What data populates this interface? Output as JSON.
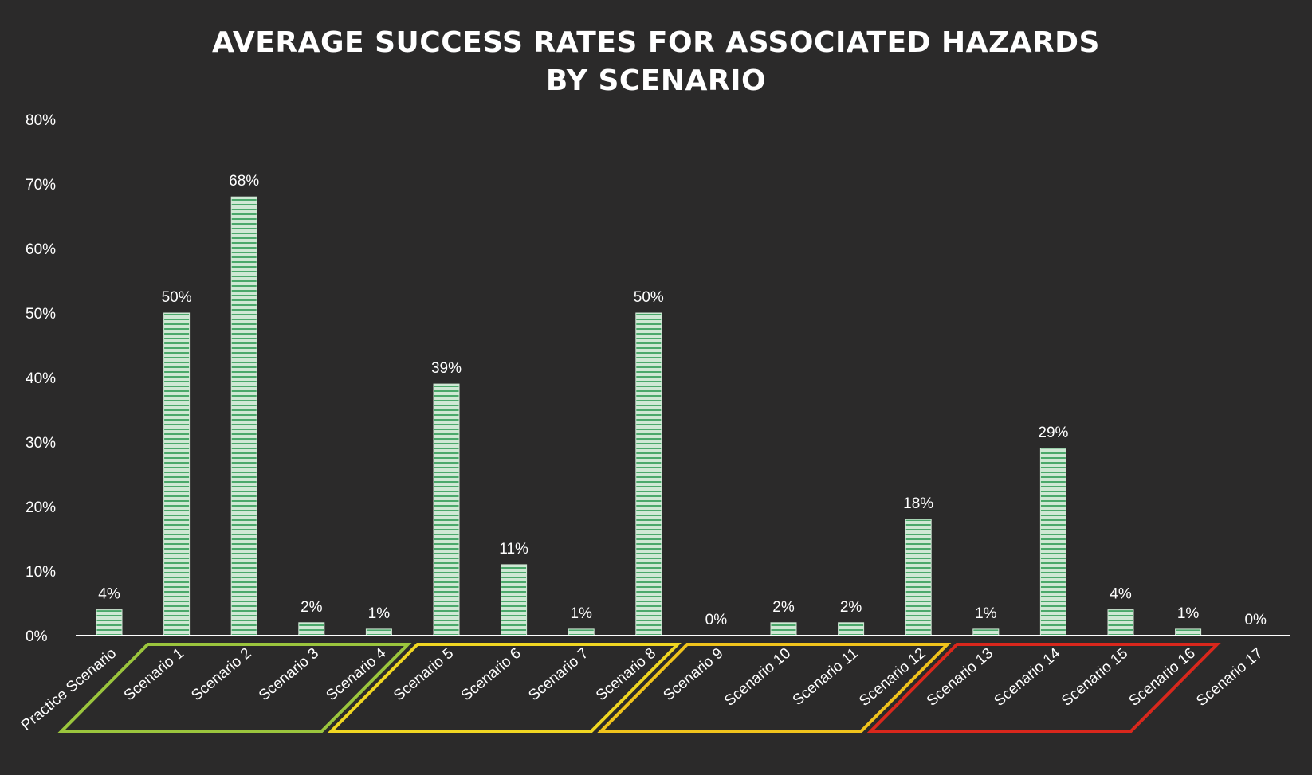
{
  "chart_data": {
    "type": "bar",
    "title": [
      "AVERAGE SUCCESS RATES FOR ASSOCIATED HAZARDS",
      "BY SCENARIO"
    ],
    "xlabel": "",
    "ylabel": "",
    "ylim": [
      0,
      80
    ],
    "yticks": [
      "0%",
      "10%",
      "20%",
      "30%",
      "40%",
      "50%",
      "60%",
      "70%",
      "80%"
    ],
    "grid": false,
    "categories": [
      "Practice Scenario",
      "Scenario 1",
      "Scenario 2",
      "Scenario 3",
      "Scenario 4",
      "Scenario 5",
      "Scenario 6",
      "Scenario 7",
      "Scenario 8",
      "Scenario 9",
      "Scenario 10",
      "Scenario 11",
      "Scenario 12",
      "Scenario 13",
      "Scenario 14",
      "Scenario 15",
      "Scenario 16",
      "Scenario 17"
    ],
    "values": [
      4,
      50,
      68,
      2,
      1,
      39,
      11,
      1,
      50,
      0,
      2,
      2,
      18,
      1,
      29,
      4,
      1,
      0
    ],
    "data_labels": [
      "4%",
      "50%",
      "68%",
      "2%",
      "1%",
      "39%",
      "11%",
      "1%",
      "50%",
      "0%",
      "2%",
      "2%",
      "18%",
      "1%",
      "29%",
      "4%",
      "1%",
      "0%"
    ],
    "bar_color": "#cfe8d4",
    "bar_stripe_color": "#4aa86a",
    "groups": [
      {
        "from": 1,
        "to": 4,
        "color": "#9bc53d"
      },
      {
        "from": 5,
        "to": 8,
        "color": "#f0d622"
      },
      {
        "from": 9,
        "to": 12,
        "color": "#f0c31c"
      },
      {
        "from": 13,
        "to": 16,
        "color": "#d9271c"
      }
    ]
  }
}
